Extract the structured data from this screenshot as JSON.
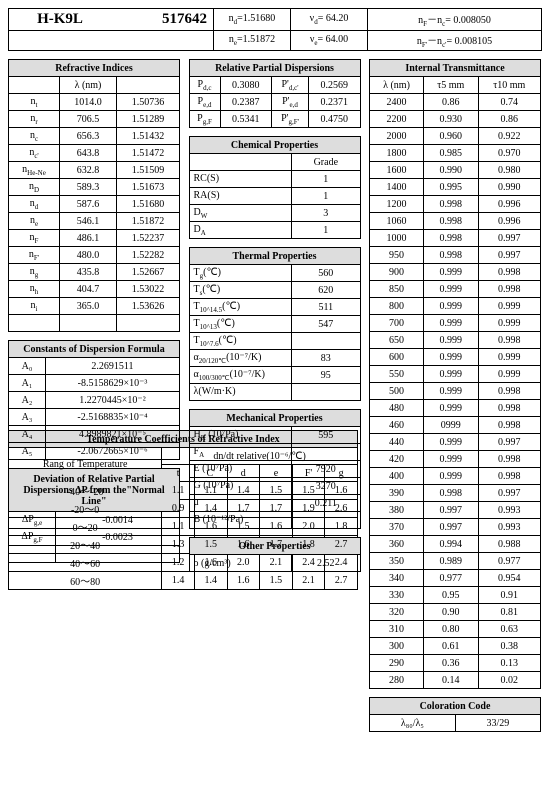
{
  "header": {
    "name": "H-K9L",
    "code": "517642",
    "nd": "=1.51680",
    "ne": "=1.51872",
    "vd": "= 64.20",
    "ve": "= 64.00",
    "nfnc": "= 0.008050",
    "nfnc2": "= 0.008105"
  },
  "ri": {
    "title": "Refractive Indices",
    "h1": "λ  (nm)",
    "rows": [
      [
        "n",
        "1014.0",
        "1.50736"
      ],
      [
        "n",
        "706.5",
        "1.51289"
      ],
      [
        "n",
        "656.3",
        "1.51432"
      ],
      [
        "n",
        "643.8",
        "1.51472"
      ],
      [
        "n",
        "632.8",
        "1.51509"
      ],
      [
        "n",
        "589.3",
        "1.51673"
      ],
      [
        "n",
        "587.6",
        "1.51680"
      ],
      [
        "n",
        "546.1",
        "1.51872"
      ],
      [
        "n",
        "486.1",
        "1.52237"
      ],
      [
        "n",
        "480.0",
        "1.52282"
      ],
      [
        "n",
        "435.8",
        "1.52667"
      ],
      [
        "n",
        "404.7",
        "1.53022"
      ],
      [
        "n",
        "365.0",
        "1.53626"
      ]
    ],
    "sub": [
      "t",
      "r",
      "c",
      "c'",
      "He-Ne",
      "D",
      "d",
      "e",
      "F",
      "F'",
      "g",
      "h",
      "i"
    ]
  },
  "cd": {
    "title": "Constants of Dispersion Formula",
    "rows": [
      [
        "A₀",
        "2.2691511"
      ],
      [
        "A₁",
        "-8.5158629×10⁻³"
      ],
      [
        "A₂",
        "1.2270445×10⁻²"
      ],
      [
        "A₃",
        "-2.5168835×10⁻⁴"
      ],
      [
        "A₄",
        "4.8989821×10⁻⁵"
      ],
      [
        "A₅",
        "-2.0672665×10⁻⁶"
      ]
    ]
  },
  "dev": {
    "title": "Deviation of Relative Partial Dispersions ΔP from the\"Normal Line\"",
    "rows": [
      [
        "ΔP",
        "-0.0014"
      ],
      [
        "ΔP",
        "-0.0023"
      ],
      [
        "",
        ""
      ]
    ],
    "sub": [
      "g,e",
      "g,F",
      ""
    ]
  },
  "tc": {
    "title": "Temperature Coefficients of Refractive Index",
    "sub": "dn/dt relative(10⁻⁶/℃)",
    "h": [
      "Rang of Temperature",
      "t",
      "C'",
      "d",
      "e",
      "F'",
      "g"
    ],
    "rows": [
      [
        "-40～-20",
        "1.1",
        "1.1",
        "1.4",
        "1.5",
        "1.5",
        "1.6"
      ],
      [
        "-20～0",
        "0.9",
        "1.4",
        "1.7",
        "1.7",
        "1.9",
        "2.6"
      ],
      [
        "0～20",
        "1.1",
        "1.6",
        "1.5",
        "1.6",
        "2.0",
        "1.8"
      ],
      [
        "20～40",
        "1.3",
        "1.5",
        "1.6",
        "1.7",
        "1.8",
        "2.7"
      ],
      [
        "40～60",
        "1.2",
        "1.6",
        "2.0",
        "2.1",
        "2.4",
        "2.4"
      ],
      [
        "60～80",
        "1.4",
        "1.4",
        "1.6",
        "1.5",
        "2.1",
        "2.7"
      ]
    ]
  },
  "rpd": {
    "title": "Relative Partial Dispersions",
    "rows": [
      [
        "P",
        "0.3080",
        "P'",
        "0.2569"
      ],
      [
        "P",
        "0.2387",
        "P'",
        "0.2371"
      ],
      [
        "P",
        "0.5341",
        "P'",
        "0.4750"
      ]
    ],
    "s1": [
      "d,c",
      "e,d",
      "g,F"
    ],
    "s2": [
      "d,c'",
      "e,d",
      "g,F'"
    ]
  },
  "cp": {
    "title": "Chemical Properties",
    "h": "Grade",
    "rows": [
      [
        "RC(S)",
        "1"
      ],
      [
        "RA(S)",
        "1"
      ],
      [
        "D",
        "3"
      ],
      [
        "D",
        "1"
      ]
    ],
    "sub": [
      "",
      "",
      "W",
      "A"
    ]
  },
  "tp": {
    "title": "Thermal   Properties",
    "rows": [
      [
        "T  (℃)",
        "560"
      ],
      [
        "T  (℃)",
        "620"
      ],
      [
        "T      (℃)",
        "511"
      ],
      [
        "T     (℃)",
        "547"
      ],
      [
        "T    (℃)",
        ""
      ],
      [
        "α        (10⁻⁷/K)",
        "83"
      ],
      [
        "α         (10⁻⁷/K)",
        "95"
      ],
      [
        "λ(W/m·K)",
        ""
      ]
    ],
    "sub": [
      "g",
      "s",
      "10^14.5",
      "10^13",
      "10^7.6",
      "20/120℃",
      "100/300℃",
      ""
    ]
  },
  "mp": {
    "title": "Mechanical Properties",
    "rows": [
      [
        "H   (10⁷Pa)",
        "595"
      ],
      [
        "F",
        ""
      ],
      [
        "E   (10⁷Pa)",
        "7920"
      ],
      [
        "G   (10⁷Pa)",
        "3270"
      ],
      [
        "μ",
        "0.211"
      ],
      [
        "B   (10⁻¹²/Pa)",
        ""
      ]
    ],
    "sub": [
      "K",
      "A",
      "",
      "",
      "",
      ""
    ]
  },
  "op": {
    "title": "Other Properties",
    "rows": [
      [
        "ρ  (g/cm³)",
        "2.52"
      ]
    ]
  },
  "it": {
    "title": "Internal Transmittance",
    "h": [
      "λ (nm)",
      "τ5 mm",
      "τ10 mm"
    ],
    "rows": [
      [
        "2400",
        "0.86",
        "0.74"
      ],
      [
        "2200",
        "0.930",
        "0.86"
      ],
      [
        "2000",
        "0.960",
        "0.922"
      ],
      [
        "1800",
        "0.985",
        "0.970"
      ],
      [
        "1600",
        "0.990",
        "0.980"
      ],
      [
        "1400",
        "0.995",
        "0.990"
      ],
      [
        "1200",
        "0.998",
        "0.996"
      ],
      [
        "1060",
        "0.998",
        "0.996"
      ],
      [
        "1000",
        "0.998",
        "0.997"
      ],
      [
        "950",
        "0.998",
        "0.997"
      ],
      [
        "900",
        "0.999",
        "0.998"
      ],
      [
        "850",
        "0.999",
        "0.998"
      ],
      [
        "800",
        "0.999",
        "0.999"
      ],
      [
        "700",
        "0.999",
        "0.999"
      ],
      [
        "650",
        "0.999",
        "0.998"
      ],
      [
        "600",
        "0.999",
        "0.999"
      ],
      [
        "550",
        "0.999",
        "0.999"
      ],
      [
        "500",
        "0.999",
        "0.998"
      ],
      [
        "480",
        "0.999",
        "0.998"
      ],
      [
        "460",
        "0999",
        "0.998"
      ],
      [
        "440",
        "0.999",
        "0.997"
      ],
      [
        "420",
        "0.999",
        "0.998"
      ],
      [
        "400",
        "0.999",
        "0.998"
      ],
      [
        "390",
        "0.998",
        "0.997"
      ],
      [
        "380",
        "0.997",
        "0.993"
      ],
      [
        "370",
        "0.997",
        "0.993"
      ],
      [
        "360",
        "0.994",
        "0.988"
      ],
      [
        "350",
        "0.989",
        "0.977"
      ],
      [
        "340",
        "0.977",
        "0.954"
      ],
      [
        "330",
        "0.95",
        "0.91"
      ],
      [
        "320",
        "0.90",
        "0.81"
      ],
      [
        "310",
        "0.80",
        "0.63"
      ],
      [
        "300",
        "0.61",
        "0.38"
      ],
      [
        "290",
        "0.36",
        "0.13"
      ],
      [
        "280",
        "0.14",
        "0.02"
      ]
    ]
  },
  "cc": {
    "title": "Coloration Code",
    "k": "λ₈₀/λ₅",
    "v": "33/29"
  }
}
